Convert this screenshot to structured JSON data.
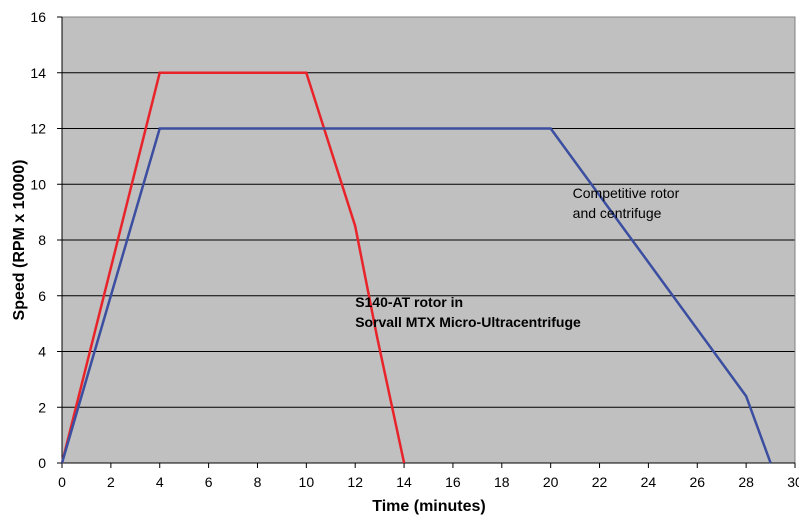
{
  "chart_data": {
    "type": "line",
    "xlabel": "Time (minutes)",
    "ylabel": "Speed (RPM x 10000)",
    "xlim": [
      0,
      30
    ],
    "ylim": [
      0,
      16
    ],
    "x_ticks": [
      0,
      2,
      4,
      6,
      8,
      10,
      12,
      14,
      16,
      18,
      20,
      22,
      24,
      26,
      28,
      30
    ],
    "y_ticks": [
      0,
      2,
      4,
      6,
      8,
      10,
      12,
      14,
      16
    ],
    "grid": "horizontal",
    "background": "#c0c0c0",
    "series": [
      {
        "color": "#e8232a",
        "points": [
          [
            0,
            0
          ],
          [
            4,
            14
          ],
          [
            10,
            14
          ],
          [
            12,
            8.5
          ],
          [
            12.9,
            4.5
          ],
          [
            14,
            0
          ]
        ]
      },
      {
        "color": "#3b4ea0",
        "points": [
          [
            0,
            0
          ],
          [
            4,
            12
          ],
          [
            20,
            12
          ],
          [
            28,
            2.4
          ],
          [
            29,
            0
          ]
        ]
      }
    ],
    "annotations": [
      {
        "lines": [
          "Competitive rotor",
          "and centrifuge"
        ],
        "bold": false,
        "x": 20.9,
        "y": 9.5
      },
      {
        "lines": [
          "S140-AT rotor in",
          "Sorvall MTX Micro-Ultracentrifuge"
        ],
        "bold": true,
        "x": 12.0,
        "y": 5.6
      }
    ]
  }
}
